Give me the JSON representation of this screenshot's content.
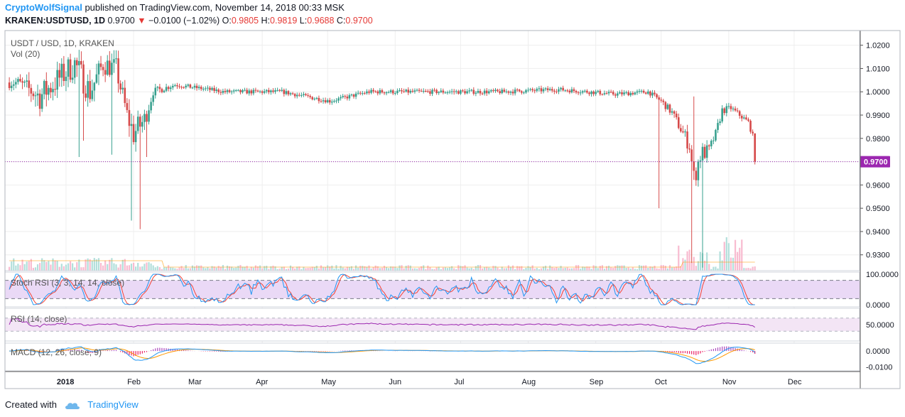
{
  "header": {
    "author": "CryptoWolfSignal",
    "published_text": "published on TradingView.com, November 14, 2018 00:33 MSK",
    "symbol": "KRAKEN:USDTUSD",
    "interval": "1D",
    "last": "0.9700",
    "change": "−0.0100 (−1.02%)",
    "o_label": "O:",
    "o_value": "0.9805",
    "h_label": "H:",
    "h_value": "0.9819",
    "l_label": "L:",
    "l_value": "0.9688",
    "c_label": "C:",
    "c_value": "0.9700",
    "chart_title": "USDT / USD, 1D, KRAKEN",
    "volume_label": "Vol (20)"
  },
  "footer": {
    "created_with": "Created with",
    "brand": "TradingView"
  },
  "colors": {
    "up": "#26a69a",
    "down": "#ef5350",
    "price_line": "#9c27b0",
    "price_tag_bg": "#9c27b0",
    "stoch_k": "#2196f3",
    "stoch_d": "#f44336",
    "rsi": "#9c27b0",
    "panel_fill": "#f3e5f5",
    "macd": "#2196f3",
    "signal": "#ff9800",
    "grid": "#eeeeee"
  },
  "chart_data": [
    {
      "type": "candlestick",
      "title": "USDT / USD, 1D, KRAKEN",
      "y_ticks": [
        "1.0200",
        "1.0100",
        "1.0000",
        "0.9900",
        "0.9800",
        "0.9700",
        "0.9600",
        "0.9500",
        "0.9400",
        "0.9300"
      ],
      "y_tick_values": [
        1.02,
        1.01,
        1.0,
        0.99,
        0.98,
        0.97,
        0.96,
        0.95,
        0.94,
        0.93
      ],
      "ylim": [
        0.9232,
        1.0263
      ],
      "x_tick_labels": [
        "2018",
        "Feb",
        "Mar",
        "Apr",
        "May",
        "Jun",
        "Jul",
        "Aug",
        "Sep",
        "Oct",
        "Nov",
        "Dec"
      ],
      "x_tick_dates": [
        "2018-01-01",
        "2018-02-01",
        "2018-03-01",
        "2018-04-01",
        "2018-05-01",
        "2018-06-01",
        "2018-07-01",
        "2018-08-01",
        "2018-09-01",
        "2018-10-01",
        "2018-11-01",
        "2018-12-01"
      ],
      "last_price": 0.97,
      "last_price_label": "0.9700",
      "anchors": [
        [
          "2017-12-10",
          1.004,
          0.004
        ],
        [
          "2017-12-20",
          0.998,
          0.01
        ],
        [
          "2018-01-05",
          1.012,
          0.01
        ],
        [
          "2018-01-12",
          1.0,
          0.01
        ],
        [
          "2018-01-18",
          1.012,
          0.008
        ],
        [
          "2018-01-24",
          1.01,
          0.008
        ],
        [
          "2018-01-29",
          0.99,
          0.008
        ],
        [
          "2018-02-01",
          0.982,
          0.01
        ],
        [
          "2018-02-06",
          0.988,
          0.008
        ],
        [
          "2018-02-10",
          1.0,
          0.003
        ],
        [
          "2018-02-20",
          1.003,
          0.0015
        ],
        [
          "2018-03-15",
          1.0,
          0.0015
        ],
        [
          "2018-04-10",
          1.0,
          0.0015
        ],
        [
          "2018-05-02",
          0.996,
          0.0015
        ],
        [
          "2018-05-20",
          1.0,
          0.0015
        ],
        [
          "2018-06-20",
          1.0,
          0.0015
        ],
        [
          "2018-07-20",
          1.0,
          0.0015
        ],
        [
          "2018-08-15",
          1.001,
          0.0015
        ],
        [
          "2018-09-10",
          0.999,
          0.0015
        ],
        [
          "2018-09-25",
          1.0,
          0.0015
        ],
        [
          "2018-10-01",
          0.996,
          0.002
        ],
        [
          "2018-10-06",
          0.991,
          0.003
        ],
        [
          "2018-10-10",
          0.984,
          0.004
        ],
        [
          "2018-10-14",
          0.977,
          0.006
        ],
        [
          "2018-10-16",
          0.963,
          0.008
        ],
        [
          "2018-10-19",
          0.973,
          0.008
        ],
        [
          "2018-10-23",
          0.975,
          0.004
        ],
        [
          "2018-10-26",
          0.982,
          0.003
        ],
        [
          "2018-10-29",
          0.992,
          0.003
        ],
        [
          "2018-11-02",
          0.993,
          0.002
        ],
        [
          "2018-11-06",
          0.99,
          0.002
        ],
        [
          "2018-11-10",
          0.987,
          0.002
        ],
        [
          "2018-11-12",
          0.981,
          0.002
        ],
        [
          "2018-11-13",
          0.97,
          0.003
        ]
      ],
      "spikes": [
        [
          "2018-01-07",
          0.972
        ],
        [
          "2018-01-09",
          0.979
        ],
        [
          "2018-01-22",
          0.973
        ],
        [
          "2018-01-31",
          0.9447
        ],
        [
          "2018-02-04",
          0.941
        ],
        [
          "2018-02-07",
          0.972
        ],
        [
          "2018-09-30",
          0.95
        ],
        [
          "2018-10-15",
          0.9265
        ],
        [
          "2018-10-20",
          0.9245
        ],
        [
          "2018-10-16",
          0.998
        ]
      ]
    },
    {
      "type": "bar",
      "title": "Vol (20)",
      "note": "volume histogram in bottom of price pane"
    },
    {
      "type": "line",
      "title": "Stoch RSI (3, 3, 14, 14, close)",
      "y_ticks": [
        "100.0000",
        "0.0000"
      ],
      "ylim": [
        0,
        100
      ],
      "bands": [
        20,
        80
      ],
      "series": [
        {
          "name": "K"
        },
        {
          "name": "D"
        }
      ]
    },
    {
      "type": "line",
      "title": "RSI (14, close)",
      "y_ticks": [
        "50.0000"
      ],
      "ylim": [
        0,
        100
      ],
      "bands": [
        30,
        70
      ],
      "series": [
        {
          "name": "RSI"
        }
      ]
    },
    {
      "type": "line",
      "title": "MACD (12, 26, close, 9)",
      "y_ticks": [
        "0.0000",
        "-0.0100"
      ],
      "ylim": [
        -0.0125,
        0.005
      ],
      "series": [
        {
          "name": "MACD"
        },
        {
          "name": "Signal"
        },
        {
          "name": "Histogram"
        }
      ]
    }
  ]
}
